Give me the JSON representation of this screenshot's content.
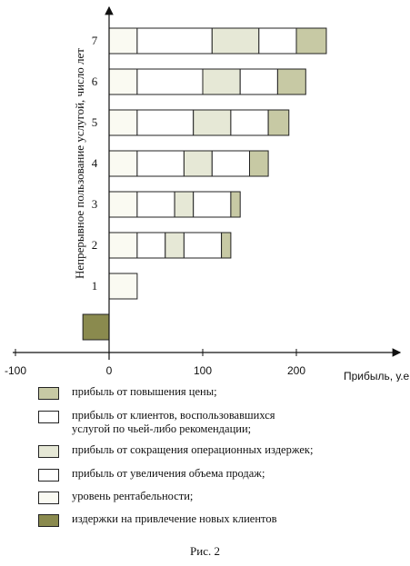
{
  "chart_data": {
    "type": "bar",
    "orientation": "horizontal",
    "stacked": true,
    "ylabel": "Непрерывное пользование услугой, число лет",
    "xlabel": "Прибыль, у.е.",
    "xlim": [
      -100,
      300
    ],
    "xticks": [
      -100,
      0,
      100,
      200
    ],
    "categories": [
      "",
      "1",
      "2",
      "3",
      "4",
      "5",
      "6",
      "7"
    ],
    "grid": false,
    "legend_position": "bottom",
    "series": [
      {
        "name": "издержки на привлечение новых клиентов",
        "color": "#8a8a4e",
        "values": [
          -28,
          0,
          0,
          0,
          0,
          0,
          0,
          0
        ]
      },
      {
        "name": "уровень рентабельности",
        "color": "#fafaf2",
        "values": [
          0,
          30,
          30,
          30,
          30,
          30,
          30,
          30
        ]
      },
      {
        "name": "прибыль от увеличения объема продаж",
        "color": "#ffffff",
        "values": [
          0,
          0,
          30,
          40,
          50,
          60,
          70,
          80
        ]
      },
      {
        "name": "прибыль от сокращения операционных издержек",
        "color": "#e6e8d6",
        "values": [
          0,
          0,
          20,
          20,
          30,
          40,
          40,
          50
        ]
      },
      {
        "name": "прибыль от клиентов, воспользовавшихся услугой по чьей-либо рекомендации",
        "color": "#ffffff",
        "values": [
          0,
          0,
          40,
          40,
          40,
          40,
          40,
          40
        ]
      },
      {
        "name": "прибыль от повышения цены",
        "color": "#c7c9a4",
        "values": [
          0,
          0,
          10,
          10,
          20,
          22,
          30,
          32
        ]
      }
    ]
  },
  "legend": [
    {
      "label": "прибыль от повышения цены;",
      "color": "#c7c9a4"
    },
    {
      "label": "прибыль от клиентов, воспользовавшихся\nуслугой по чьей-либо рекомендации;",
      "color": "#ffffff"
    },
    {
      "label": "прибыль от сокращения операционных издержек;",
      "color": "#e6e8d6"
    },
    {
      "label": "прибыль от увеличения объема продаж;",
      "color": "#ffffff"
    },
    {
      "label": "уровень рентабельности;",
      "color": "#fafaf2"
    },
    {
      "label": "издержки на привлечение новых клиентов",
      "color": "#8a8a4e"
    }
  ],
  "caption": "Рис. 2"
}
